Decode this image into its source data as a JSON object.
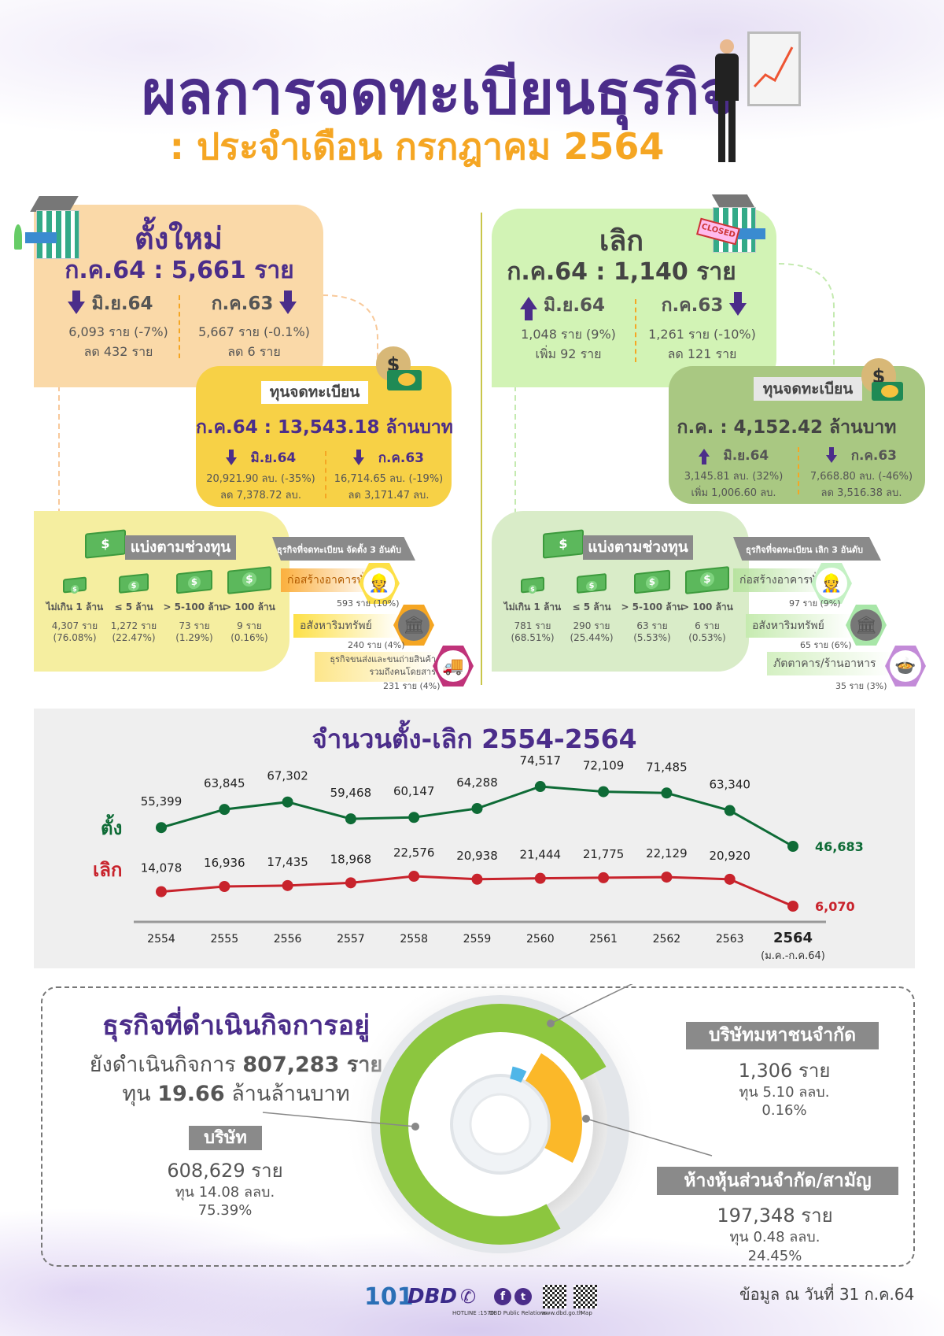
{
  "header": {
    "title": "ผลการจดทะเบียนธุรกิจ",
    "subtitle": ": ประจำเดือน กรกฎาคม 2564"
  },
  "new": {
    "title": "ตั้งใหม่",
    "headline": "ก.ค.64 : 5,661 ราย",
    "compare": [
      {
        "label": "มิ.ย.64",
        "trend": "down",
        "line1": "6,093 ราย (-7%)",
        "line2": "ลด 432 ราย"
      },
      {
        "label": "ก.ค.63",
        "trend": "down",
        "line1": "5,667 ราย (-0.1%)",
        "line2": "ลด 6 ราย"
      }
    ],
    "capital": {
      "label": "ทุนจดทะเบียน",
      "headline": "ก.ค.64 : 13,543.18 ล้านบาท",
      "compare": [
        {
          "label": "มิ.ย.64",
          "trend": "down",
          "line1": "20,921.90 ลบ. (-35%)",
          "line2": "ลด 7,378.72 ลบ."
        },
        {
          "label": "ก.ค.63",
          "trend": "down",
          "line1": "16,714.65 ลบ. (-19%)",
          "line2": "ลด 3,171.47 ลบ."
        }
      ]
    },
    "ranges": {
      "label": "แบ่งตามช่วงทุน",
      "items": [
        {
          "range": "ไม่เกิน 1 ล้าน",
          "count": "4,307 ราย",
          "pct": "(76.08%)"
        },
        {
          "range": "≤ 5 ล้าน",
          "count": "1,272 ราย",
          "pct": "(22.47%)"
        },
        {
          "range": "> 5-100 ล้าน",
          "count": "73 ราย",
          "pct": "(1.29%)"
        },
        {
          "range": "> 100 ล้าน",
          "count": "9 ราย",
          "pct": "(0.16%)"
        }
      ]
    },
    "top3": {
      "label": "ธุรกิจที่จดทะเบียน จัดตั้ง 3 อันดับ",
      "items": [
        {
          "name": "ก่อสร้างอาคารทั่วไป",
          "count": "593 ราย (10%)",
          "icon": "construction-icon"
        },
        {
          "name": "อสังหาริมทรัพย์",
          "count": "240 ราย (4%)",
          "icon": "bank-building-icon"
        },
        {
          "name": "ธุรกิจขนส่งและขนถ่ายสินค้า",
          "name2": "รวมถึงคนโดยสาร",
          "count": "231 ราย (4%)",
          "icon": "truck-icon"
        }
      ]
    }
  },
  "closed": {
    "title": "เลิก",
    "badge": "CLOSED",
    "headline": "ก.ค.64 : 1,140 ราย",
    "compare": [
      {
        "label": "มิ.ย.64",
        "trend": "up",
        "line1": "1,048 ราย (9%)",
        "line2": "เพิ่ม 92 ราย"
      },
      {
        "label": "ก.ค.63",
        "trend": "down",
        "line1": "1,261 ราย (-10%)",
        "line2": "ลด 121 ราย"
      }
    ],
    "capital": {
      "label": "ทุนจดทะเบียน",
      "headline": "ก.ค. : 4,152.42 ล้านบาท",
      "compare": [
        {
          "label": "มิ.ย.64",
          "trend": "up",
          "line1": "3,145.81 ลบ. (32%)",
          "line2": "เพิ่ม 1,006.60 ลบ."
        },
        {
          "label": "ก.ค.63",
          "trend": "down",
          "line1": "7,668.80 ลบ. (-46%)",
          "line2": "ลด 3,516.38 ลบ."
        }
      ]
    },
    "ranges": {
      "label": "แบ่งตามช่วงทุน",
      "items": [
        {
          "range": "ไม่เกิน 1 ล้าน",
          "count": "781 ราย",
          "pct": "(68.51%)"
        },
        {
          "range": "≤ 5 ล้าน",
          "count": "290 ราย",
          "pct": "(25.44%)"
        },
        {
          "range": "> 5-100 ล้าน",
          "count": "63 ราย",
          "pct": "(5.53%)"
        },
        {
          "range": "> 100 ล้าน",
          "count": "6 ราย",
          "pct": "(0.53%)"
        }
      ]
    },
    "top3": {
      "label": "ธุรกิจที่จดทะเบียน เลิก 3 อันดับ",
      "items": [
        {
          "name": "ก่อสร้างอาคารทั่วไป",
          "count": "97 ราย (9%)",
          "icon": "construction-icon"
        },
        {
          "name": "อสังหาริมทรัพย์",
          "count": "65 ราย (6%)",
          "icon": "bank-building-icon"
        },
        {
          "name": "ภัตตาคาร/ร้านอาหาร",
          "count": "35 ราย (3%)",
          "icon": "food-cloche-icon"
        }
      ]
    }
  },
  "chart_data": [
    {
      "type": "line",
      "title": "จำนวนตั้ง-เลิก 2554-2564",
      "categories": [
        "2554",
        "2555",
        "2556",
        "2557",
        "2558",
        "2559",
        "2560",
        "2561",
        "2562",
        "2563",
        "2564"
      ],
      "last_category_note": "(ม.ค.-ก.ค.64)",
      "series": [
        {
          "name": "ตั้ง",
          "color": "#0e6b36",
          "values": [
            55399,
            63845,
            67302,
            59468,
            60147,
            64288,
            74517,
            72109,
            71485,
            63340,
            46683
          ]
        },
        {
          "name": "เลิก",
          "color": "#c8232c",
          "values": [
            14078,
            16936,
            17435,
            18968,
            22576,
            20938,
            21444,
            21775,
            22129,
            20920,
            6070
          ]
        }
      ],
      "grid": false,
      "legend": "left"
    },
    {
      "type": "pie",
      "style": "donut",
      "slices": [
        {
          "name": "บริษัท",
          "count": "608,629 ราย",
          "capital": "ทุน 14.08 ลลบ.",
          "pct_label": "75.39%",
          "value": 75.39,
          "color": "#8cc63f"
        },
        {
          "name": "ห้างหุ้นส่วนจำกัด/สามัญ",
          "count": "197,348 ราย",
          "capital": "ทุน 0.48 ลลบ.",
          "pct_label": "24.45%",
          "value": 24.45,
          "color": "#fbb829"
        },
        {
          "name": "บริษัทมหาชนจำกัด",
          "count": "1,306 ราย",
          "capital": "ทุน 5.10 ลลบ.",
          "pct_label": "0.16%",
          "value": 0.16,
          "color": "#4fb6e8"
        }
      ]
    }
  ],
  "active": {
    "title": "ธุรกิจที่ดำเนินกิจการอยู่",
    "line1_prefix": "ยังดำเนินกิจการ",
    "line1_value": "807,283 ราย",
    "line2_prefix": "ทุน",
    "line2_value": "19.66",
    "line2_suffix": "ล้านล้านบาท"
  },
  "footer": {
    "date": "ข้อมูล ณ วันที่ 31 ก.ค.64",
    "hotline": "HOTLINE :1570",
    "social": "DBD Public Relations",
    "web": "www.dbd.go.th",
    "map": "Map",
    "logo1": "101",
    "logo2": "DBD"
  },
  "colors": {
    "purple": "#4b2d8a",
    "orange": "#f5a623",
    "new_box": "#fad9a8",
    "capital_new": "#f7d146",
    "range_new": "#f5eea0",
    "closed_box": "#d2f3b5",
    "capital_closed": "#a9c882",
    "range_closed": "#d9ecc8"
  }
}
